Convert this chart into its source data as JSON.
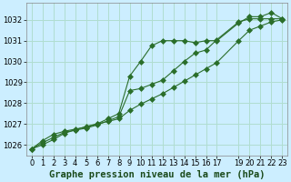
{
  "background_color": "#cceeff",
  "grid_color": "#b0ddd0",
  "line_color": "#2a6e2a",
  "title": "Graphe pression niveau de la mer (hPa)",
  "xlim": [
    -0.5,
    23.5
  ],
  "ylim": [
    1025.5,
    1032.8
  ],
  "yticks": [
    1026,
    1027,
    1028,
    1029,
    1030,
    1031,
    1032
  ],
  "xtick_positions": [
    0,
    1,
    2,
    3,
    4,
    5,
    6,
    7,
    8,
    9,
    10,
    11,
    12,
    13,
    14,
    15,
    16,
    17,
    19,
    20,
    21,
    22,
    23
  ],
  "xtick_labels": [
    "0",
    "1",
    "2",
    "3",
    "4",
    "5",
    "6",
    "7",
    "8",
    "9",
    "10",
    "11",
    "12",
    "13",
    "14",
    "15",
    "16",
    "17",
    "19",
    "20",
    "21",
    "22",
    "23"
  ],
  "series1_x": [
    0,
    1,
    2,
    3,
    4,
    5,
    6,
    7,
    8,
    9,
    10,
    11,
    12,
    13,
    14,
    15,
    16,
    17,
    19,
    20,
    21,
    22,
    23
  ],
  "series1_y": [
    1025.8,
    1026.2,
    1026.5,
    1026.65,
    1026.75,
    1026.85,
    1027.0,
    1027.25,
    1027.5,
    1029.3,
    1030.0,
    1030.75,
    1031.0,
    1031.0,
    1031.0,
    1030.9,
    1031.0,
    1031.0,
    1031.85,
    1032.15,
    1032.15,
    1032.35,
    1032.05
  ],
  "series2_x": [
    0,
    1,
    2,
    3,
    4,
    5,
    6,
    7,
    8,
    9,
    10,
    11,
    12,
    13,
    14,
    15,
    16,
    17,
    19,
    20,
    21,
    22,
    23
  ],
  "series2_y": [
    1025.8,
    1026.1,
    1026.35,
    1026.6,
    1026.7,
    1026.8,
    1026.95,
    1027.15,
    1027.35,
    1028.6,
    1028.7,
    1028.9,
    1029.1,
    1029.55,
    1030.0,
    1030.4,
    1030.55,
    1031.05,
    1031.9,
    1032.05,
    1032.05,
    1032.05,
    1032.05
  ],
  "series3_x": [
    0,
    1,
    2,
    3,
    4,
    5,
    6,
    7,
    8,
    9,
    10,
    11,
    12,
    13,
    14,
    15,
    16,
    17,
    19,
    20,
    21,
    22,
    23
  ],
  "series3_y": [
    1025.8,
    1026.0,
    1026.25,
    1026.55,
    1026.72,
    1026.88,
    1027.0,
    1027.12,
    1027.25,
    1027.65,
    1027.95,
    1028.2,
    1028.45,
    1028.75,
    1029.05,
    1029.35,
    1029.65,
    1029.95,
    1031.0,
    1031.5,
    1031.7,
    1031.9,
    1032.0
  ],
  "title_fontsize": 7.5,
  "tick_fontsize": 6
}
